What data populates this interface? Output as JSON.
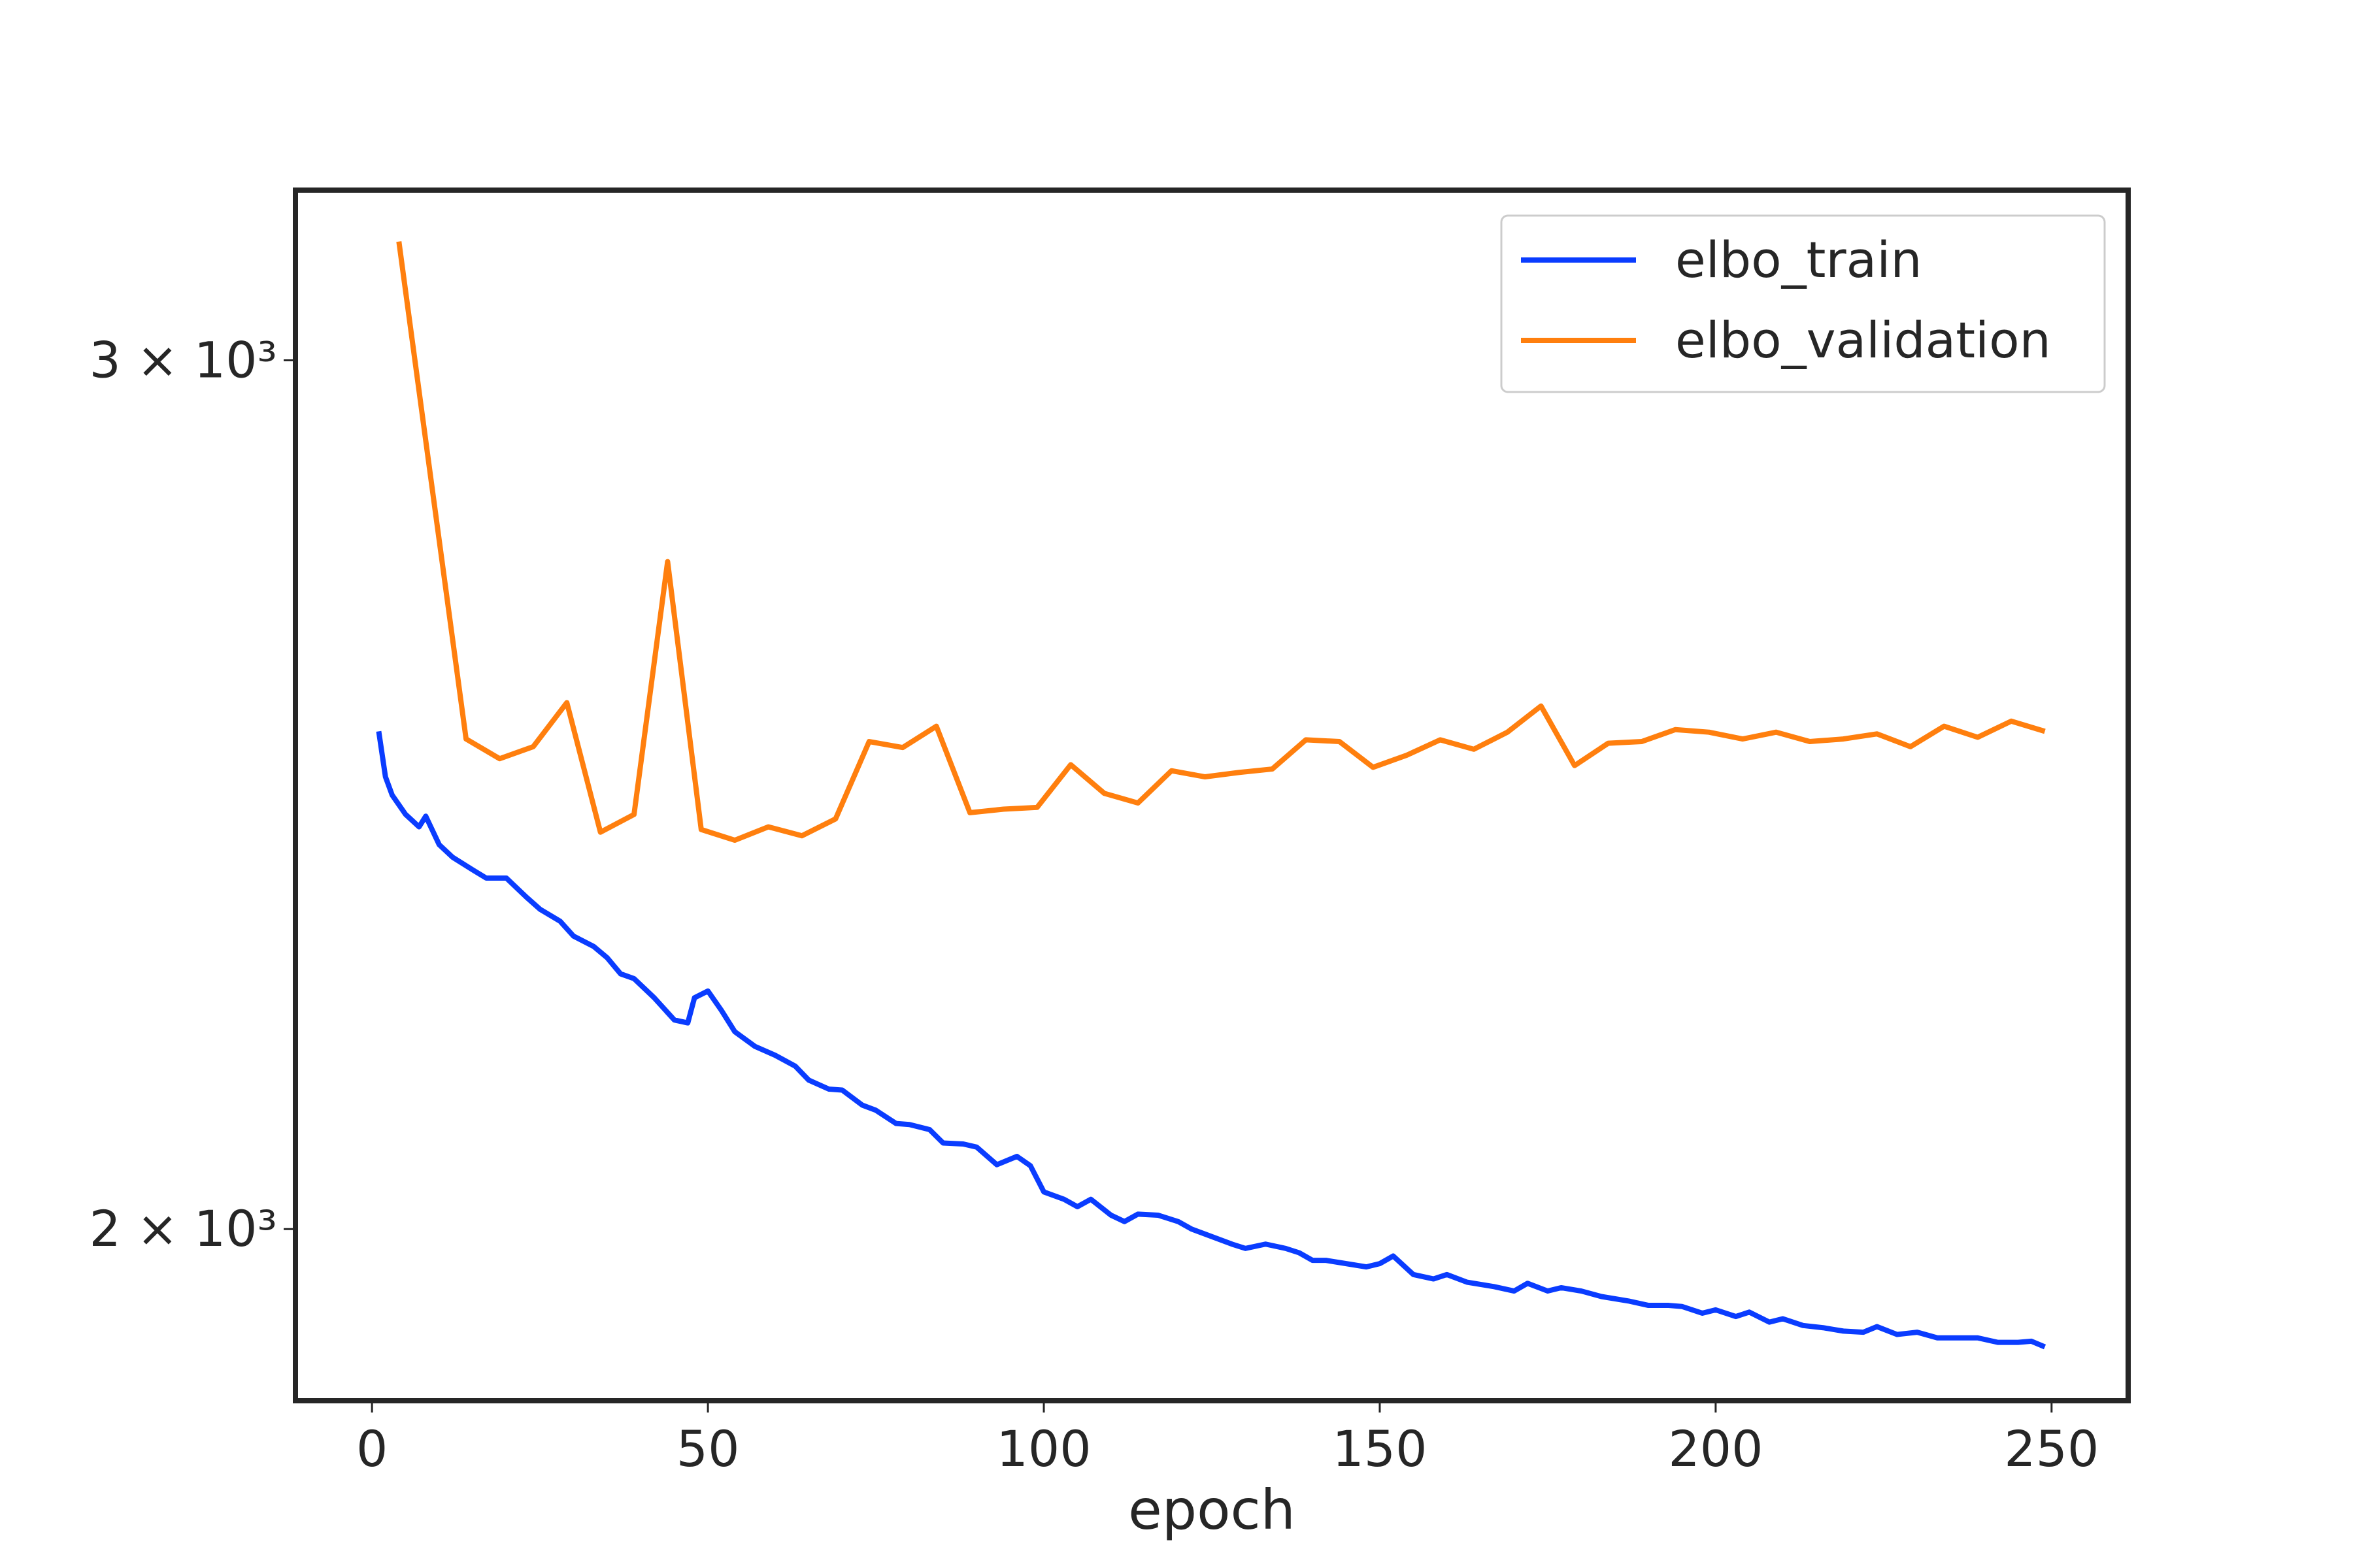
{
  "chart_data": {
    "type": "line",
    "xlabel": "epoch",
    "yscale": "log",
    "legend": "upper right",
    "xlim": [
      -11.4,
      261.4
    ],
    "ylim": [
      1846,
      3248
    ],
    "xticks": [
      0,
      50,
      100,
      150,
      200,
      250
    ],
    "yticks": [
      {
        "value": 2000,
        "label": "2 × 10³"
      },
      {
        "value": 3000,
        "label": "3 × 10³"
      }
    ],
    "series": [
      {
        "name": "elbo_train",
        "color": "#0a3cff",
        "x": [
          1,
          2,
          3,
          5,
          7,
          8,
          10,
          12,
          15,
          17,
          20,
          23,
          25,
          28,
          30,
          33,
          35,
          37,
          39,
          42,
          45,
          47,
          48,
          50,
          52,
          54,
          57,
          60,
          63,
          65,
          68,
          70,
          73,
          75,
          78,
          80,
          83,
          85,
          88,
          90,
          93,
          96,
          98,
          100,
          103,
          105,
          107,
          110,
          112,
          114,
          117,
          120,
          122,
          125,
          128,
          130,
          133,
          136,
          138,
          140,
          142,
          145,
          148,
          150,
          152,
          155,
          158,
          160,
          163,
          167,
          170,
          172,
          175,
          177,
          180,
          183,
          187,
          190,
          193,
          195,
          198,
          200,
          203,
          205,
          208,
          210,
          213,
          216,
          219,
          222,
          224,
          227,
          230,
          233,
          236,
          239,
          242,
          245,
          247,
          249
        ],
        "values": [
          2523,
          2470,
          2449,
          2427,
          2413,
          2425,
          2393,
          2379,
          2365,
          2356,
          2356,
          2335,
          2322,
          2309,
          2293,
          2282,
          2270,
          2253,
          2248,
          2228,
          2205,
          2202,
          2228,
          2235,
          2215,
          2193,
          2178,
          2169,
          2158,
          2144,
          2135,
          2134,
          2119,
          2114,
          2101,
          2100,
          2095,
          2082,
          2081,
          2078,
          2061,
          2069,
          2060,
          2035,
          2028,
          2021,
          2028,
          2013,
          2007,
          2014,
          2013,
          2007,
          2000,
          1993,
          1986,
          1982,
          1986,
          1982,
          1978,
          1971,
          1971,
          1968,
          1965,
          1968,
          1975,
          1958,
          1954,
          1958,
          1951,
          1947,
          1943,
          1950,
          1943,
          1946,
          1943,
          1938,
          1934,
          1930,
          1930,
          1929,
          1923,
          1926,
          1920,
          1924,
          1915,
          1918,
          1912,
          1910,
          1907,
          1906,
          1911,
          1904,
          1906,
          1901,
          1901,
          1901,
          1897,
          1897,
          1898,
          1893
        ]
      },
      {
        "name": "elbo_validation",
        "color": "#ff7f0e",
        "x": [
          4,
          9,
          14,
          19,
          24,
          29,
          34,
          39,
          44,
          49,
          54,
          59,
          64,
          69,
          74,
          79,
          84,
          89,
          94,
          99,
          104,
          109,
          114,
          119,
          124,
          129,
          134,
          139,
          144,
          149,
          154,
          159,
          164,
          169,
          174,
          179,
          184,
          189,
          194,
          199,
          204,
          209,
          214,
          219,
          224,
          229,
          234,
          239,
          244,
          249
        ],
        "values": [
          3171,
          2823,
          2514,
          2491,
          2505,
          2557,
          2407,
          2427,
          2731,
          2410,
          2398,
          2413,
          2403,
          2422,
          2511,
          2504,
          2529,
          2429,
          2433,
          2435,
          2484,
          2451,
          2440,
          2477,
          2470,
          2475,
          2479,
          2513,
          2511,
          2481,
          2495,
          2513,
          2502,
          2522,
          2553,
          2483,
          2509,
          2511,
          2525,
          2522,
          2514,
          2522,
          2511,
          2514,
          2520,
          2505,
          2529,
          2516,
          2535,
          2523
        ]
      }
    ]
  }
}
